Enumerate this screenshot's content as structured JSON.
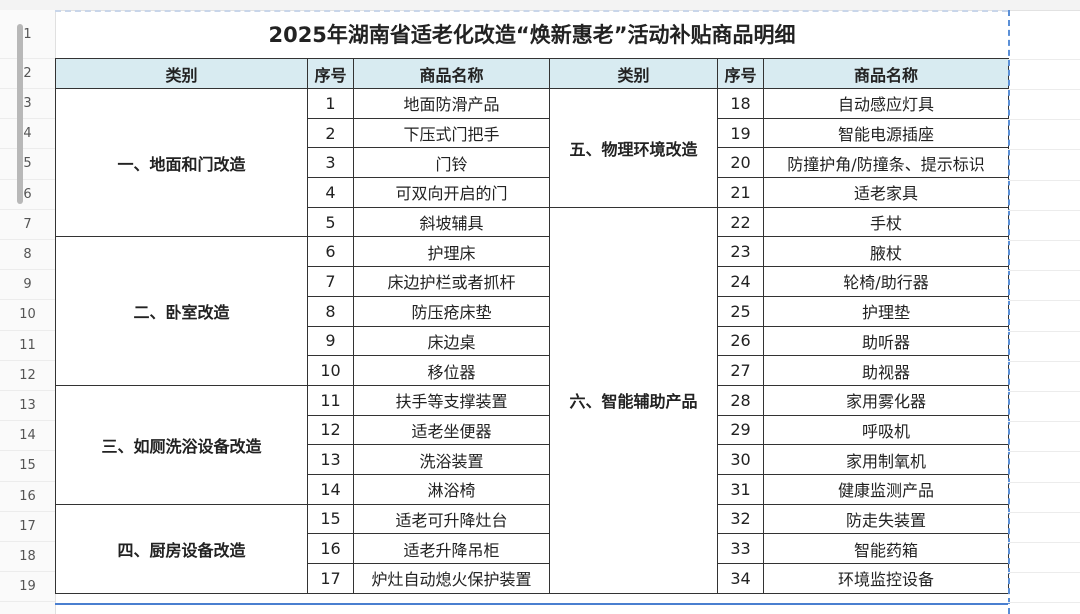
{
  "title": "2025年湖南省适老化改造“焕新惠老”活动补贴商品明细",
  "headers": {
    "category": "类别",
    "index": "序号",
    "name": "商品名称"
  },
  "row_numbers": [
    "1",
    "2",
    "3",
    "4",
    "5",
    "6",
    "7",
    "8",
    "9",
    "10",
    "11",
    "12",
    "13",
    "14",
    "15",
    "16",
    "17",
    "18",
    "19"
  ],
  "left_groups": [
    {
      "category": "一、地面和门改造",
      "items": [
        [
          "1",
          "地面防滑产品"
        ],
        [
          "2",
          "下压式门把手"
        ],
        [
          "3",
          "门铃"
        ],
        [
          "4",
          "可双向开启的门"
        ],
        [
          "5",
          "斜坡辅具"
        ]
      ]
    },
    {
      "category": "二、卧室改造",
      "items": [
        [
          "6",
          "护理床"
        ],
        [
          "7",
          "床边护栏或者抓杆"
        ],
        [
          "8",
          "防压疮床垫"
        ],
        [
          "9",
          "床边桌"
        ],
        [
          "10",
          "移位器"
        ]
      ]
    },
    {
      "category": "三、如厕洗浴设备改造",
      "items": [
        [
          "11",
          "扶手等支撑装置"
        ],
        [
          "12",
          "适老坐便器"
        ],
        [
          "13",
          "洗浴装置"
        ],
        [
          "14",
          "淋浴椅"
        ]
      ]
    },
    {
      "category": "四、厨房设备改造",
      "items": [
        [
          "15",
          "适老可升降灶台"
        ],
        [
          "16",
          "适老升降吊柜"
        ],
        [
          "17",
          "炉灶自动熄火保护装置"
        ]
      ]
    }
  ],
  "right_groups": [
    {
      "category": "五、物理环境改造",
      "items": [
        [
          "18",
          "自动感应灯具"
        ],
        [
          "19",
          "智能电源插座"
        ],
        [
          "20",
          "防撞护角/防撞条、提示标识"
        ],
        [
          "21",
          "适老家具"
        ]
      ]
    },
    {
      "category": "六、智能辅助产品",
      "items": [
        [
          "22",
          "手杖"
        ],
        [
          "23",
          "腋杖"
        ],
        [
          "24",
          "轮椅/助行器"
        ],
        [
          "25",
          "护理垫"
        ],
        [
          "26",
          "助听器"
        ],
        [
          "27",
          "助视器"
        ],
        [
          "28",
          "家用雾化器"
        ],
        [
          "29",
          "呼吸机"
        ],
        [
          "30",
          "家用制氧机"
        ],
        [
          "31",
          "健康监测产品"
        ],
        [
          "32",
          "防走失装置"
        ],
        [
          "33",
          "智能药箱"
        ],
        [
          "34",
          "环境监控设备"
        ]
      ]
    }
  ]
}
